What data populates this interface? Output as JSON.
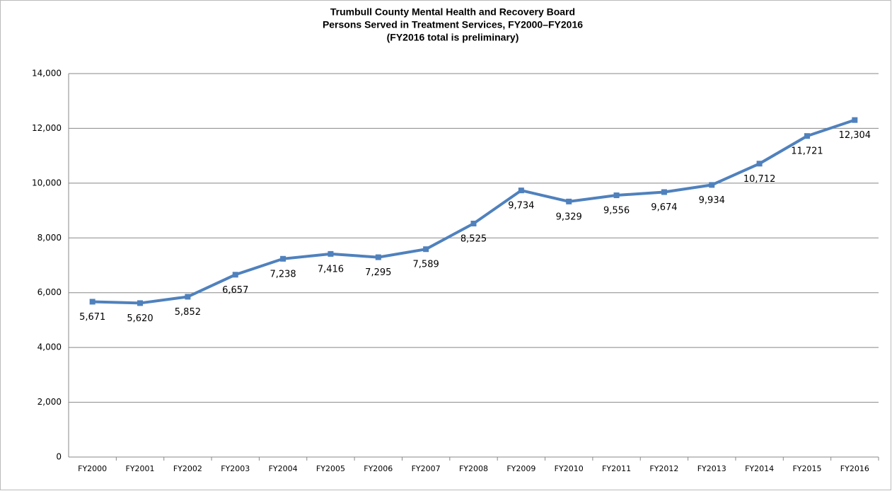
{
  "chart_data": {
    "type": "line",
    "title": [
      "Trumbull County Mental Health and Recovery Board",
      "Persons Served in Treatment Services, FY2000–FY2016",
      "(FY2016 total is preliminary)"
    ],
    "categories": [
      "FY2000",
      "FY2001",
      "FY2002",
      "FY2003",
      "FY2004",
      "FY2005",
      "FY2006",
      "FY2007",
      "FY2008",
      "FY2009",
      "FY2010",
      "FY2011",
      "FY2012",
      "FY2013",
      "FY2014",
      "FY2015",
      "FY2016"
    ],
    "values": [
      5671,
      5620,
      5852,
      6657,
      7238,
      7416,
      7295,
      7589,
      8525,
      9734,
      9329,
      9556,
      9674,
      9934,
      10712,
      11721,
      12304
    ],
    "value_labels": [
      "5,671",
      "5,620",
      "5,852",
      "6,657",
      "7,238",
      "7,416",
      "7,295",
      "7,589",
      "8,525",
      "9,734",
      "9,329",
      "9,556",
      "9,674",
      "9,934",
      "10,712",
      "11,721",
      "12,304"
    ],
    "color": "#4f81bd",
    "ylim": [
      0,
      14000
    ],
    "yticks": [
      0,
      {
        "value": 2000,
        "label": "2,000"
      },
      {
        "value": 4000,
        "label": "4,000"
      },
      {
        "value": 6000,
        "label": "6,000"
      },
      {
        "value": 8000,
        "label": "8,000"
      },
      {
        "value": 10000,
        "label": "10,000"
      },
      {
        "value": 12000,
        "label": "12,000"
      },
      {
        "value": 14000,
        "label": "14,000"
      }
    ],
    "grid": true
  }
}
